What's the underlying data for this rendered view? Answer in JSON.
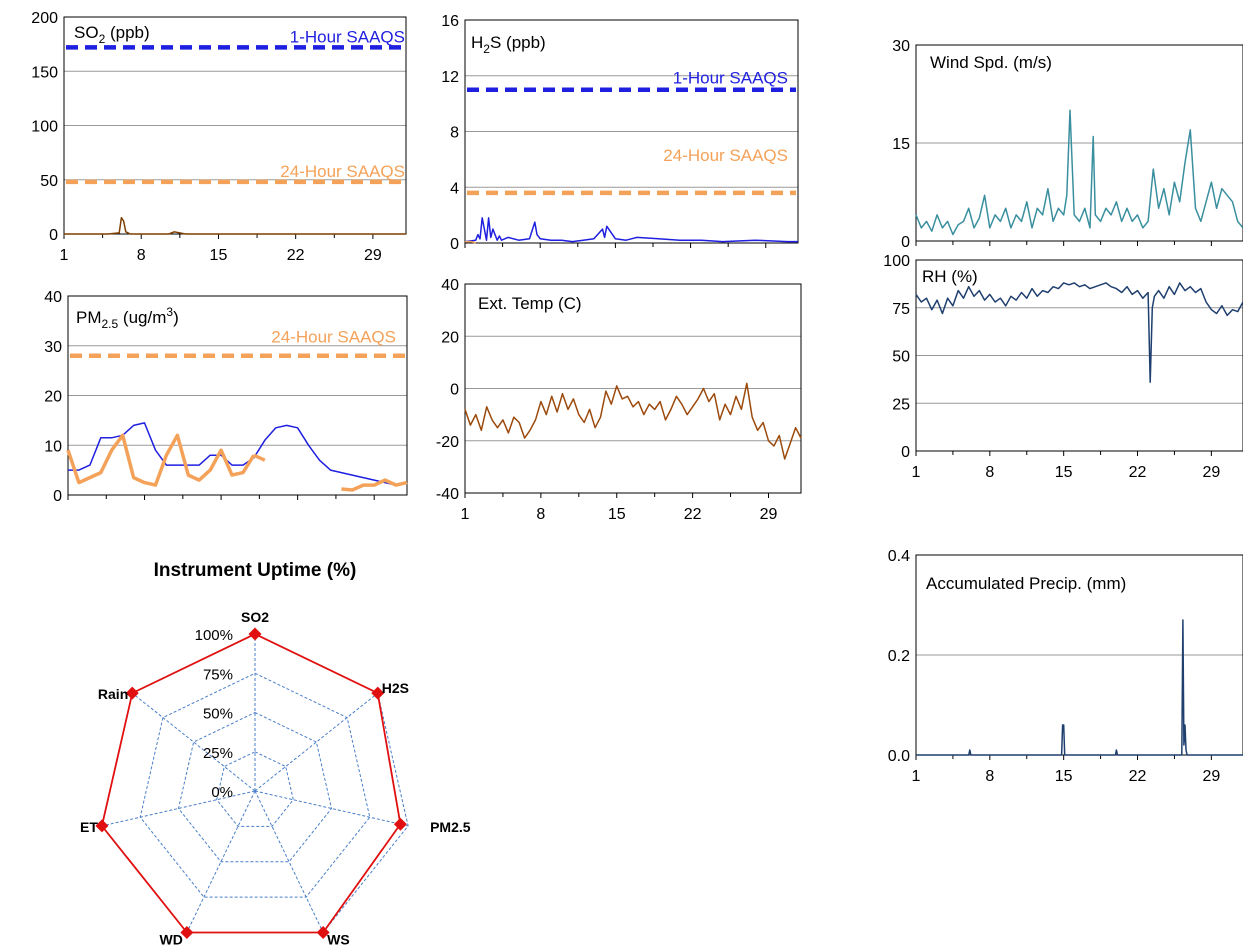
{
  "colors": {
    "so2": "#7f3f00",
    "h2s": "#1f1fe0",
    "pm_hourly": "#1f1fe0",
    "pm_daily": "#f4a259",
    "temp": "#9c4a0c",
    "wind": "#3a8f9f",
    "rh": "#1f3f6f",
    "precip": "#1f3f6f",
    "saaqs_1h": "#1f1fe0",
    "saaqs_24h": "#f4a259",
    "radar": "#e01010",
    "radar_grid": "#4a7fc8"
  },
  "chart_data": [
    {
      "id": "so2",
      "type": "line",
      "title_main": "SO",
      "title_sub": "2",
      "title_rest": " (ppb)",
      "ylim": [
        0,
        200
      ],
      "yticks": [
        "0",
        "50",
        "100",
        "150",
        "200"
      ],
      "xlim": [
        1,
        32
      ],
      "xticks": [
        "1",
        "8",
        "15",
        "22",
        "29"
      ],
      "reference_lines": [
        {
          "label": "1-Hour SAAQS",
          "value": 172
        },
        {
          "label": "24-Hour SAAQS",
          "value": 48
        }
      ],
      "series": [
        {
          "x": [
            1,
            3,
            5,
            6.0,
            6.2,
            6.4,
            6.6,
            7,
            9,
            10.5,
            11,
            12,
            15,
            18,
            20,
            22,
            25,
            28,
            31,
            32
          ],
          "values": [
            0,
            0,
            0,
            1,
            15,
            12,
            2,
            0,
            0,
            0,
            2,
            0,
            0,
            0,
            0,
            0,
            0,
            0,
            0,
            0
          ]
        }
      ]
    },
    {
      "id": "h2s",
      "type": "line",
      "title_main": "H",
      "title_sub": "2",
      "title_rest": "S (ppb)",
      "ylim": [
        0,
        16
      ],
      "yticks": [
        "0",
        "4",
        "8",
        "12",
        "16"
      ],
      "xlim": [
        1,
        32
      ],
      "xticks": [],
      "reference_lines": [
        {
          "label": "1-Hour SAAQS",
          "value": 11
        },
        {
          "label": "24-Hour SAAQS",
          "value": 3.6
        }
      ],
      "series": [
        {
          "x": [
            1,
            2,
            2.2,
            2.4,
            2.6,
            3,
            3.2,
            3.4,
            3.6,
            4,
            4.2,
            4.4,
            5,
            6,
            7,
            7.5,
            7.7,
            8,
            9,
            10,
            11,
            12,
            13,
            13.8,
            14,
            14.2,
            15,
            16,
            17,
            19,
            21,
            23,
            25,
            28,
            31,
            32
          ],
          "values": [
            0.1,
            0.2,
            0.6,
            0.3,
            1.8,
            0.2,
            1.8,
            0.4,
            1.0,
            0.2,
            0.5,
            0.2,
            0.4,
            0.2,
            0.3,
            1.5,
            0.6,
            0.3,
            0.2,
            0.2,
            0.1,
            0.2,
            0.3,
            1.0,
            0.4,
            1.2,
            0.3,
            0.2,
            0.4,
            0.3,
            0.2,
            0.2,
            0.1,
            0.2,
            0.1,
            0.1
          ]
        },
        {
          "x": [
            1,
            1.6,
            2
          ],
          "values": [
            0.1,
            0.1,
            0.0
          ]
        }
      ]
    },
    {
      "id": "pm25",
      "type": "line",
      "title_main": "PM",
      "title_sub": "2.5",
      "title_rest": " (ug/m",
      "title_sup": "3",
      "title_end": ")",
      "ylim": [
        0,
        40
      ],
      "yticks": [
        "0",
        "10",
        "20",
        "30",
        "40"
      ],
      "xlim": [
        1,
        32
      ],
      "xticks": [],
      "reference_lines": [
        {
          "label": "24-Hour SAAQS",
          "value": 28
        }
      ],
      "series": [
        {
          "x": [
            1,
            2,
            3,
            4,
            5,
            6,
            7,
            8,
            9,
            10,
            11,
            12,
            13,
            14,
            15,
            16,
            17,
            18,
            19,
            20,
            21,
            22,
            23,
            24,
            25,
            26,
            27,
            28,
            29,
            30,
            31,
            32
          ],
          "values": [
            5,
            5,
            6,
            11.5,
            11.5,
            12,
            14,
            14.5,
            9,
            6,
            6,
            6,
            6,
            8,
            8,
            6,
            6,
            7.5,
            11,
            13.5,
            14,
            13.5,
            10,
            7,
            5,
            4.5,
            4,
            3.5,
            3,
            2.5,
            2,
            2.5
          ]
        },
        {
          "x": [
            1,
            2,
            3,
            4,
            5,
            6,
            7,
            8,
            9,
            10,
            11,
            12,
            13,
            14,
            15,
            16,
            17,
            18
          ],
          "values": [
            9,
            2.5,
            3.5,
            4.5,
            9,
            12,
            3.5,
            2.5,
            2,
            8,
            12,
            4,
            3,
            5,
            9,
            4,
            4.5,
            8
          ]
        },
        {
          "x": [
            18,
            19
          ],
          "values": [
            8,
            7
          ]
        },
        {
          "x": [
            26,
            27,
            28,
            29,
            30,
            31,
            32
          ],
          "values": [
            1.2,
            1.0,
            2.0,
            2.0,
            3.0,
            2.0,
            2.5
          ]
        }
      ]
    },
    {
      "id": "temp",
      "type": "line",
      "title": "Ext. Temp (C)",
      "ylim": [
        -40,
        40
      ],
      "yticks": [
        "-40",
        "-20",
        "0",
        "20",
        "40"
      ],
      "xlim": [
        1,
        32
      ],
      "xticks": [
        "1",
        "8",
        "15",
        "22",
        "29"
      ],
      "series": [
        {
          "x": [
            1,
            1.5,
            2,
            2.5,
            3,
            3.5,
            4,
            4.5,
            5,
            5.5,
            6,
            6.5,
            7,
            7.5,
            8,
            8.5,
            9,
            9.5,
            10,
            10.5,
            11,
            11.5,
            12,
            12.5,
            13,
            13.5,
            14,
            14.5,
            15,
            15.5,
            16,
            16.5,
            17,
            17.5,
            18,
            18.5,
            19,
            19.5,
            20,
            20.5,
            21,
            21.5,
            22,
            22.5,
            23,
            23.5,
            24,
            24.5,
            25,
            25.5,
            26,
            26.5,
            27,
            27.5,
            28,
            28.5,
            29,
            29.5,
            30,
            30.5,
            31,
            31.5,
            32
          ],
          "values": [
            -8,
            -14,
            -10,
            -16,
            -7,
            -12,
            -15,
            -12,
            -17,
            -11,
            -13,
            -19,
            -16,
            -12,
            -5,
            -10,
            -3,
            -9,
            -2,
            -8,
            -4,
            -10,
            -13,
            -8,
            -15,
            -11,
            -1,
            -6,
            1,
            -4,
            -3,
            -7,
            -5,
            -10,
            -6,
            -8,
            -5,
            -12,
            -8,
            -3,
            -6,
            -10,
            -7,
            -4,
            0,
            -5,
            -2,
            -12,
            -6,
            -10,
            -3,
            -8,
            2,
            -11,
            -16,
            -13,
            -20,
            -22,
            -18,
            -27,
            -21,
            -15,
            -19
          ]
        }
      ]
    },
    {
      "id": "wind",
      "type": "line",
      "title": "Wind Spd. (m/s)",
      "ylim": [
        0,
        30
      ],
      "yticks": [
        "0",
        "15",
        "30"
      ],
      "xlim": [
        1,
        32
      ],
      "xticks": [],
      "series": [
        {
          "x": [
            1,
            1.5,
            2,
            2.5,
            3,
            3.5,
            4,
            4.5,
            5,
            5.5,
            6,
            6.5,
            7,
            7.5,
            8,
            8.5,
            9,
            9.5,
            10,
            10.5,
            11,
            11.5,
            12,
            12.5,
            13,
            13.5,
            14,
            14.5,
            15,
            15.3,
            15.6,
            16,
            16.5,
            17,
            17.5,
            17.8,
            18,
            18.5,
            19,
            19.5,
            20,
            20.5,
            21,
            21.5,
            22,
            22.5,
            23,
            23.5,
            24,
            24.5,
            25,
            25.5,
            26,
            26.5,
            27,
            27.5,
            28,
            28.5,
            29,
            29.5,
            30,
            30.5,
            31,
            31.5,
            32
          ],
          "values": [
            4,
            2,
            3,
            1.5,
            4,
            2,
            3,
            1,
            2.5,
            3,
            5,
            2,
            3.5,
            7,
            2,
            4,
            3,
            5,
            2,
            4,
            3,
            6,
            2,
            5,
            4,
            8,
            3,
            5,
            4,
            7,
            20,
            4,
            3,
            5,
            2,
            16,
            4,
            3,
            5,
            4,
            6,
            3,
            5,
            3,
            4,
            2,
            3,
            11,
            5,
            8,
            4,
            9,
            6,
            12,
            17,
            5,
            3,
            6,
            9,
            5,
            8,
            7,
            6,
            3,
            2
          ]
        }
      ]
    },
    {
      "id": "rh",
      "type": "line",
      "title": "RH (%)",
      "ylim": [
        0,
        100
      ],
      "yticks": [
        "0",
        "25",
        "50",
        "75",
        "100"
      ],
      "xlim": [
        1,
        32
      ],
      "xticks": [
        "1",
        "8",
        "15",
        "22",
        "29"
      ],
      "series": [
        {
          "x": [
            1,
            1.5,
            2,
            2.5,
            3,
            3.5,
            4,
            4.5,
            5,
            5.5,
            6,
            6.5,
            7,
            7.5,
            8,
            8.5,
            9,
            9.5,
            10,
            10.5,
            11,
            11.5,
            12,
            12.5,
            13,
            13.5,
            14,
            14.5,
            15,
            15.5,
            16,
            16.5,
            17,
            17.5,
            18,
            18.5,
            19,
            19.5,
            20,
            20.5,
            21,
            21.5,
            22,
            22.5,
            23,
            23.2,
            23.4,
            23.6,
            24,
            24.5,
            25,
            25.5,
            26,
            26.5,
            27,
            27.5,
            28,
            28.5,
            29,
            29.5,
            30,
            30.5,
            31,
            31.5,
            32
          ],
          "values": [
            82,
            78,
            80,
            74,
            79,
            72,
            80,
            76,
            84,
            80,
            86,
            81,
            84,
            79,
            82,
            78,
            80,
            76,
            81,
            79,
            83,
            80,
            85,
            81,
            84,
            83,
            86,
            85,
            88,
            87,
            88,
            86,
            87,
            85,
            86,
            87,
            88,
            86,
            85,
            83,
            86,
            82,
            84,
            80,
            83,
            36,
            75,
            81,
            84,
            80,
            86,
            82,
            88,
            84,
            86,
            83,
            85,
            78,
            74,
            72,
            76,
            71,
            74,
            73,
            78
          ]
        }
      ]
    },
    {
      "id": "precip",
      "type": "line",
      "title": "Accumulated Precip. (mm)",
      "ylim": [
        0,
        0.4
      ],
      "yticks": [
        "0.0",
        "0.2",
        "0.4"
      ],
      "xlim": [
        1,
        32
      ],
      "xticks": [
        "1",
        "8",
        "15",
        "22",
        "29"
      ],
      "series": [
        {
          "x": [
            1,
            6,
            6.1,
            6.2,
            14.8,
            14.9,
            15.0,
            15.1,
            19.9,
            20,
            20.1,
            26.2,
            26.3,
            26.4,
            26.5,
            26.6,
            26.7,
            32
          ],
          "values": [
            0,
            0,
            0.01,
            0,
            0,
            0.06,
            0.06,
            0,
            0,
            0.01,
            0,
            0,
            0.27,
            0.02,
            0.06,
            0.01,
            0,
            0
          ]
        }
      ]
    },
    {
      "id": "uptime",
      "type": "radar",
      "title": "Instrument Uptime (%)",
      "categories": [
        "SO2",
        "H2S",
        "PM2.5",
        "WS",
        "WD",
        "ET",
        "Rain"
      ],
      "values": [
        100,
        100,
        95,
        100,
        100,
        100,
        100
      ],
      "rlim": [
        0,
        100
      ],
      "rticks": [
        "0%",
        "25%",
        "50%",
        "75%",
        "100%"
      ]
    }
  ]
}
